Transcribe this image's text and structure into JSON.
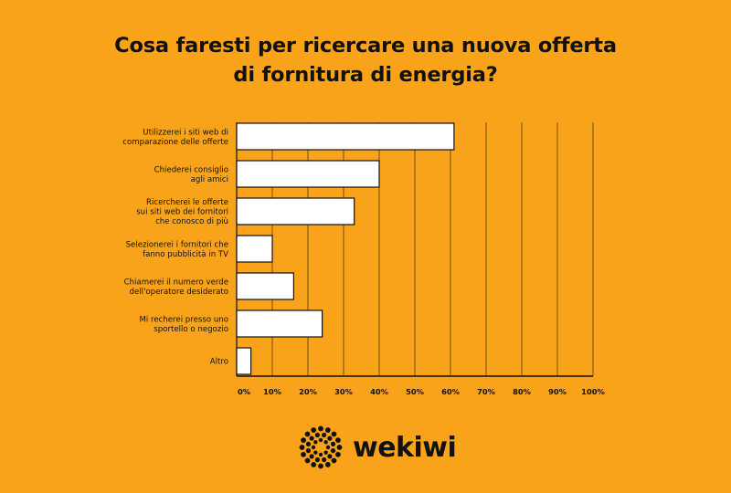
{
  "brand": {
    "logo_text": "wekiwi"
  },
  "colors": {
    "background": "#F9A31A",
    "bar_fill": "#FFFFFF",
    "ink": "#111111"
  },
  "chart_data": {
    "type": "bar",
    "orientation": "horizontal",
    "title": [
      "Cosa faresti per ricercare una nuova offerta",
      "di fornitura di energia?"
    ],
    "categories": [
      [
        "Utilizzerei i siti web di",
        "comparazione delle offerte"
      ],
      [
        "Chiederei consiglio",
        "agli amici"
      ],
      [
        "Ricercherei le offerte",
        "sui siti web dei fornitori",
        "che conosco di più"
      ],
      [
        "Selezionerei i fornitori che",
        "fanno pubblicità in TV"
      ],
      [
        "Chiamerei il numero verde",
        "dell'operatore desiderato"
      ],
      [
        "Mi recherei presso uno",
        "sportello o negozio"
      ],
      [
        "Altro"
      ]
    ],
    "values": [
      61,
      40,
      33,
      10,
      16,
      24,
      4
    ],
    "xlim": [
      0,
      100
    ],
    "ticks": [
      "0%",
      "10%",
      "20%",
      "30%",
      "40%",
      "50%",
      "60%",
      "70%",
      "80%",
      "90%",
      "100%"
    ],
    "grid": true
  }
}
